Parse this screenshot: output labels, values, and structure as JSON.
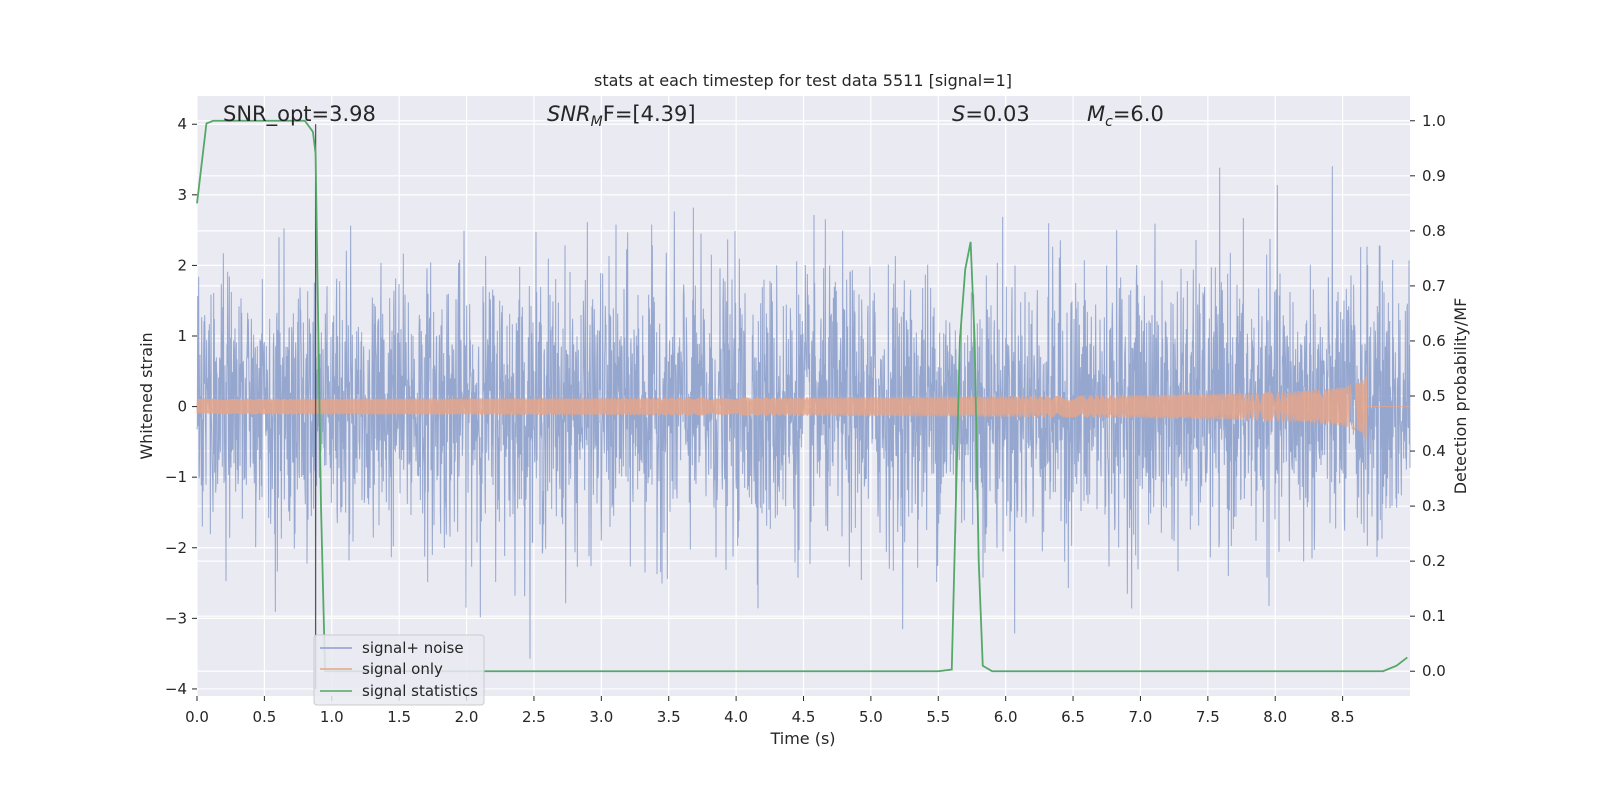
{
  "chart_data": {
    "type": "line",
    "title": "stats at each timestep for test data 5511 [signal=1]",
    "xlabel": "Time (s)",
    "ylabel_left": "Whitened strain",
    "ylabel_right": "Detection probability/MF",
    "xlim": [
      0,
      9.0
    ],
    "ylim_left": [
      -4.1,
      4.4
    ],
    "ylim_right": [
      -0.045,
      1.045
    ],
    "grid": true,
    "legend_placement": "lower-left",
    "x_ticks": [
      "0.0",
      "0.5",
      "1.0",
      "1.5",
      "2.0",
      "2.5",
      "3.0",
      "3.5",
      "4.0",
      "4.5",
      "5.0",
      "5.5",
      "6.0",
      "6.5",
      "7.0",
      "7.5",
      "8.0",
      "8.5"
    ],
    "y_ticks_left": [
      "4",
      "3",
      "2",
      "1",
      "0",
      "−1",
      "−2",
      "−3",
      "−4"
    ],
    "y_ticks_right": [
      "1.0",
      "0.9",
      "0.8",
      "0.7",
      "0.6",
      "0.5",
      "0.4",
      "0.3",
      "0.2",
      "0.1",
      "0.0"
    ],
    "annotations": {
      "snr_opt": "SNR_opt=3.98",
      "snr_mf_main": "SNR",
      "snr_mf_sub": "M",
      "snr_mf_rest": "F=[4.39]",
      "s_main": "S",
      "s_rest": "=0.03",
      "mc_main": "M",
      "mc_sub": "c",
      "mc_rest": "=6.0"
    },
    "marker_line": {
      "x": 0.88,
      "y_range": [
        -4.0,
        4.0
      ]
    },
    "series": [
      {
        "name": "signal+ noise",
        "axis": "left",
        "color": "#8da0cb",
        "style": "noise",
        "sigma": 0.95,
        "envelope_peak": 4.0
      },
      {
        "name": "signal only",
        "axis": "left",
        "color": "#e5a48a",
        "style": "chirp",
        "chirp_start": 0.0,
        "chirp_end": 8.68,
        "peak_amplitude": 0.5
      },
      {
        "name": "signal statistics",
        "axis": "right",
        "color": "#55a868",
        "x": [
          0.0,
          0.07,
          0.12,
          0.3,
          0.6,
          0.8,
          0.86,
          0.88,
          0.92,
          0.95,
          1.0,
          1.5,
          2.0,
          2.5,
          3.0,
          3.5,
          4.0,
          4.5,
          5.0,
          5.5,
          5.6,
          5.63,
          5.66,
          5.7,
          5.74,
          5.77,
          5.8,
          5.83,
          5.9,
          6.0,
          6.5,
          7.0,
          7.5,
          8.0,
          8.5,
          8.8,
          8.9,
          8.98
        ],
        "y": [
          0.85,
          0.995,
          1.0,
          1.0,
          1.0,
          1.0,
          0.98,
          0.94,
          0.3,
          0.0,
          0.0,
          0.0,
          0.0,
          0.0,
          0.0,
          0.0,
          0.0,
          0.0,
          0.0,
          0.0,
          0.003,
          0.3,
          0.6,
          0.73,
          0.78,
          0.6,
          0.2,
          0.01,
          0.0,
          0.0,
          0.0,
          0.0,
          0.0,
          0.0,
          0.0,
          0.0,
          0.01,
          0.025
        ]
      }
    ]
  }
}
